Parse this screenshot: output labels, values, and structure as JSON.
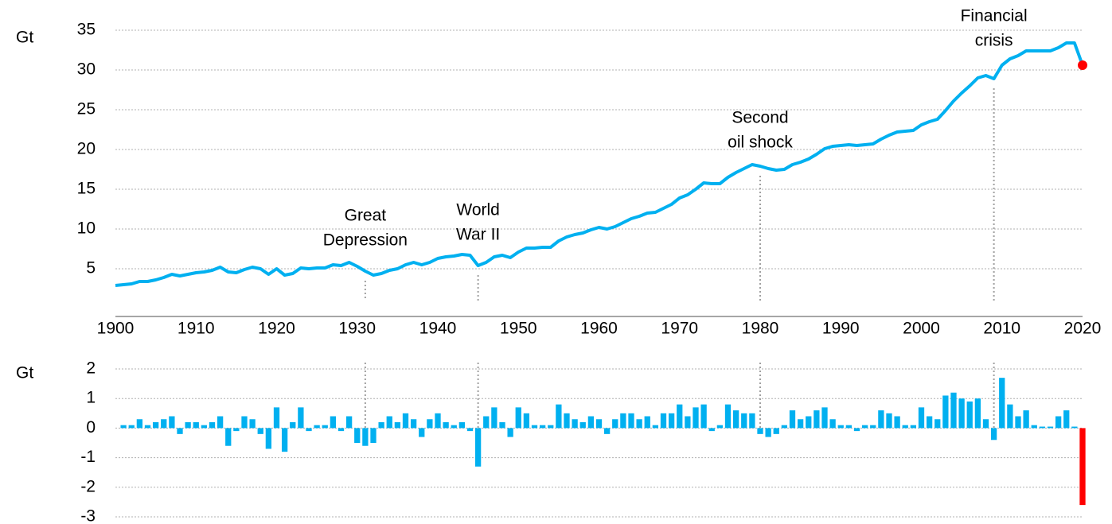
{
  "chart_data": [
    {
      "type": "line",
      "unit": "Gt",
      "x": [
        1900,
        1901,
        1902,
        1903,
        1904,
        1905,
        1906,
        1907,
        1908,
        1909,
        1910,
        1911,
        1912,
        1913,
        1914,
        1915,
        1916,
        1917,
        1918,
        1919,
        1920,
        1921,
        1922,
        1923,
        1924,
        1925,
        1926,
        1927,
        1928,
        1929,
        1930,
        1931,
        1932,
        1933,
        1934,
        1935,
        1936,
        1937,
        1938,
        1939,
        1940,
        1941,
        1942,
        1943,
        1944,
        1945,
        1946,
        1947,
        1948,
        1949,
        1950,
        1951,
        1952,
        1953,
        1954,
        1955,
        1956,
        1957,
        1958,
        1959,
        1960,
        1961,
        1962,
        1963,
        1964,
        1965,
        1966,
        1967,
        1968,
        1969,
        1970,
        1971,
        1972,
        1973,
        1974,
        1975,
        1976,
        1977,
        1978,
        1979,
        1980,
        1981,
        1982,
        1983,
        1984,
        1985,
        1986,
        1987,
        1988,
        1989,
        1990,
        1991,
        1992,
        1993,
        1994,
        1995,
        1996,
        1997,
        1998,
        1999,
        2000,
        2001,
        2002,
        2003,
        2004,
        2005,
        2006,
        2007,
        2008,
        2009,
        2010,
        2011,
        2012,
        2013,
        2014,
        2015,
        2016,
        2017,
        2018,
        2019,
        2020
      ],
      "values": [
        2.9,
        3.0,
        3.1,
        3.4,
        3.4,
        3.6,
        3.9,
        4.3,
        4.1,
        4.3,
        4.5,
        4.6,
        4.8,
        5.2,
        4.6,
        4.5,
        4.9,
        5.2,
        5.0,
        4.3,
        5.0,
        4.2,
        4.4,
        5.1,
        5.0,
        5.1,
        5.1,
        5.5,
        5.4,
        5.8,
        5.3,
        4.7,
        4.2,
        4.4,
        4.8,
        5.0,
        5.5,
        5.8,
        5.5,
        5.8,
        6.3,
        6.5,
        6.6,
        6.8,
        6.7,
        5.4,
        5.8,
        6.5,
        6.7,
        6.4,
        7.1,
        7.6,
        7.6,
        7.7,
        7.7,
        8.5,
        9.0,
        9.3,
        9.5,
        9.9,
        10.2,
        10.0,
        10.3,
        10.8,
        11.3,
        11.6,
        12.0,
        12.1,
        12.6,
        13.1,
        13.9,
        14.3,
        15.0,
        15.8,
        15.7,
        15.7,
        16.5,
        17.1,
        17.6,
        18.1,
        17.9,
        17.6,
        17.4,
        17.5,
        18.1,
        18.4,
        18.8,
        19.4,
        20.1,
        20.4,
        20.5,
        20.6,
        20.5,
        20.6,
        20.7,
        21.3,
        21.8,
        22.2,
        22.3,
        22.4,
        23.1,
        23.5,
        23.8,
        24.9,
        26.1,
        27.1,
        28.0,
        29.0,
        29.3,
        28.9,
        30.6,
        31.4,
        31.8,
        32.4,
        32.4,
        32.4,
        32.4,
        32.8,
        33.4,
        33.4,
        30.6
      ],
      "color": "#00b0f0",
      "highlight_last_color": "#ff0000",
      "xlim": [
        1900,
        2020
      ],
      "xticks": [
        1900,
        1910,
        1920,
        1930,
        1940,
        1950,
        1960,
        1970,
        1980,
        1990,
        2000,
        2010,
        2020
      ],
      "ylim": [
        -1,
        35
      ],
      "yticks": [
        5,
        10,
        15,
        20,
        25,
        30,
        35
      ],
      "grid": true,
      "annotations": [
        {
          "x": 1931,
          "lines": [
            "Great",
            "Depression"
          ]
        },
        {
          "x": 1945,
          "lines": [
            "World",
            "War II"
          ]
        },
        {
          "x": 1980,
          "lines": [
            "Second",
            "oil shock"
          ]
        },
        {
          "x": 2009,
          "lines": [
            "Financial",
            "crisis"
          ]
        }
      ]
    },
    {
      "type": "bar",
      "unit": "Gt",
      "x": [
        1901,
        1902,
        1903,
        1904,
        1905,
        1906,
        1907,
        1908,
        1909,
        1910,
        1911,
        1912,
        1913,
        1914,
        1915,
        1916,
        1917,
        1918,
        1919,
        1920,
        1921,
        1922,
        1923,
        1924,
        1925,
        1926,
        1927,
        1928,
        1929,
        1930,
        1931,
        1932,
        1933,
        1934,
        1935,
        1936,
        1937,
        1938,
        1939,
        1940,
        1941,
        1942,
        1943,
        1944,
        1945,
        1946,
        1947,
        1948,
        1949,
        1950,
        1951,
        1952,
        1953,
        1954,
        1955,
        1956,
        1957,
        1958,
        1959,
        1960,
        1961,
        1962,
        1963,
        1964,
        1965,
        1966,
        1967,
        1968,
        1969,
        1970,
        1971,
        1972,
        1973,
        1974,
        1975,
        1976,
        1977,
        1978,
        1979,
        1980,
        1981,
        1982,
        1983,
        1984,
        1985,
        1986,
        1987,
        1988,
        1989,
        1990,
        1991,
        1992,
        1993,
        1994,
        1995,
        1996,
        1997,
        1998,
        1999,
        2000,
        2001,
        2002,
        2003,
        2004,
        2005,
        2006,
        2007,
        2008,
        2009,
        2010,
        2011,
        2012,
        2013,
        2014,
        2015,
        2016,
        2017,
        2018,
        2019,
        2020
      ],
      "values": [
        0.1,
        0.1,
        0.3,
        0.1,
        0.2,
        0.3,
        0.4,
        -0.2,
        0.2,
        0.2,
        0.1,
        0.2,
        0.4,
        -0.6,
        -0.1,
        0.4,
        0.3,
        -0.2,
        -0.7,
        0.7,
        -0.8,
        0.2,
        0.7,
        -0.1,
        0.1,
        0.1,
        0.4,
        -0.1,
        0.4,
        -0.5,
        -0.6,
        -0.5,
        0.2,
        0.4,
        0.2,
        0.5,
        0.3,
        -0.3,
        0.3,
        0.5,
        0.2,
        0.1,
        0.2,
        -0.1,
        -1.3,
        0.4,
        0.7,
        0.2,
        -0.3,
        0.7,
        0.5,
        0.1,
        0.1,
        0.1,
        0.8,
        0.5,
        0.3,
        0.2,
        0.4,
        0.3,
        -0.2,
        0.3,
        0.5,
        0.5,
        0.3,
        0.4,
        0.1,
        0.5,
        0.5,
        0.8,
        0.4,
        0.7,
        0.8,
        -0.1,
        0.1,
        0.8,
        0.6,
        0.5,
        0.5,
        -0.2,
        -0.3,
        -0.2,
        0.1,
        0.6,
        0.3,
        0.4,
        0.6,
        0.7,
        0.3,
        0.1,
        0.1,
        -0.1,
        0.1,
        0.1,
        0.6,
        0.5,
        0.4,
        0.1,
        0.1,
        0.7,
        0.4,
        0.3,
        1.1,
        1.2,
        1.0,
        0.9,
        1.0,
        0.3,
        -0.4,
        1.7,
        0.8,
        0.4,
        0.6,
        0.1,
        0.05,
        0.05,
        0.4,
        0.6,
        0.05,
        -2.6
      ],
      "color": "#00b0f0",
      "highlight_last_color": "#ff0000",
      "xlim": [
        1900,
        2020
      ],
      "ylim": [
        -3,
        2
      ],
      "yticks": [
        -3,
        -2,
        -1,
        0,
        1,
        2
      ],
      "grid": true
    }
  ]
}
